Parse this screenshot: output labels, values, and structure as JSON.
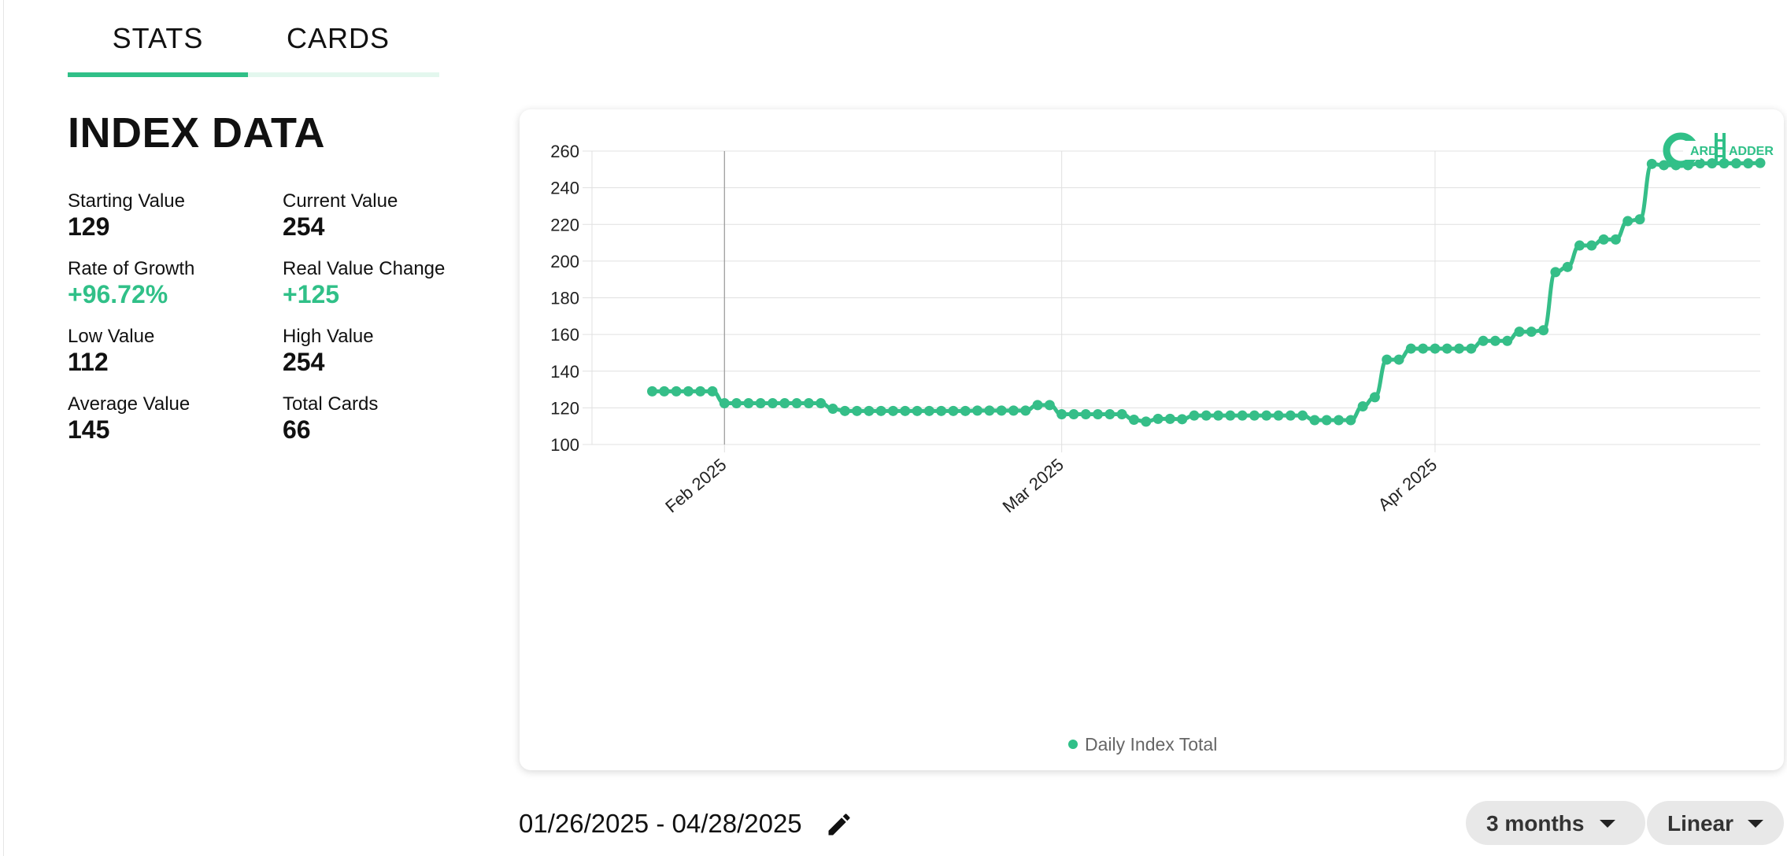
{
  "tabs": [
    {
      "label": "STATS",
      "active": true
    },
    {
      "label": "CARDS",
      "active": false
    }
  ],
  "stats": {
    "title": "INDEX DATA",
    "items": [
      {
        "label": "Starting Value",
        "value": "129"
      },
      {
        "label": "Current Value",
        "value": "254"
      },
      {
        "label": "Rate of Growth",
        "value": "+96.72%",
        "highlight": true
      },
      {
        "label": "Real Value Change",
        "value": "+125",
        "highlight": true
      },
      {
        "label": "Low Value",
        "value": "112"
      },
      {
        "label": "High Value",
        "value": "254"
      },
      {
        "label": "Average Value",
        "value": "145"
      },
      {
        "label": "Total Cards",
        "value": "66"
      }
    ]
  },
  "logo": {
    "text_c": "C",
    "text_ard": "ARD",
    "text_l": "L",
    "text_adder": "ADDER"
  },
  "colors": {
    "accent": "#30c088",
    "line": "#35be88",
    "grid": "#e0e0e0",
    "pill": "#e8e8e8"
  },
  "chart_data": {
    "type": "line",
    "series": [
      {
        "name": "Daily Index Total",
        "points": [
          [
            "2025-01-26",
            129
          ],
          [
            "2025-01-27",
            129
          ],
          [
            "2025-01-28",
            129
          ],
          [
            "2025-01-29",
            129
          ],
          [
            "2025-01-30",
            129
          ],
          [
            "2025-01-31",
            129
          ],
          [
            "2025-02-01",
            122.5
          ],
          [
            "2025-02-02",
            122.5
          ],
          [
            "2025-02-03",
            122.5
          ],
          [
            "2025-02-04",
            122.5
          ],
          [
            "2025-02-05",
            122.5
          ],
          [
            "2025-02-06",
            122.5
          ],
          [
            "2025-02-07",
            122.5
          ],
          [
            "2025-02-08",
            122.5
          ],
          [
            "2025-02-09",
            122.5
          ],
          [
            "2025-02-10",
            119.5
          ],
          [
            "2025-02-11",
            118.3
          ],
          [
            "2025-02-12",
            118.3
          ],
          [
            "2025-02-13",
            118.3
          ],
          [
            "2025-02-14",
            118.3
          ],
          [
            "2025-02-15",
            118.3
          ],
          [
            "2025-02-16",
            118.3
          ],
          [
            "2025-02-17",
            118.3
          ],
          [
            "2025-02-18",
            118.3
          ],
          [
            "2025-02-19",
            118.3
          ],
          [
            "2025-02-20",
            118.3
          ],
          [
            "2025-02-21",
            118.3
          ],
          [
            "2025-02-22",
            118.5
          ],
          [
            "2025-02-23",
            118.5
          ],
          [
            "2025-02-24",
            118.5
          ],
          [
            "2025-02-25",
            118.5
          ],
          [
            "2025-02-26",
            118.5
          ],
          [
            "2025-02-27",
            121.5
          ],
          [
            "2025-02-28",
            121.5
          ],
          [
            "2025-03-01",
            116.5
          ],
          [
            "2025-03-02",
            116.5
          ],
          [
            "2025-03-03",
            116.5
          ],
          [
            "2025-03-04",
            116.5
          ],
          [
            "2025-03-05",
            116.5
          ],
          [
            "2025-03-06",
            116.5
          ],
          [
            "2025-03-07",
            113.5
          ],
          [
            "2025-03-08",
            112.5
          ],
          [
            "2025-03-09",
            114
          ],
          [
            "2025-03-10",
            114
          ],
          [
            "2025-03-11",
            113.8
          ],
          [
            "2025-03-12",
            115.8
          ],
          [
            "2025-03-13",
            115.8
          ],
          [
            "2025-03-14",
            115.8
          ],
          [
            "2025-03-15",
            115.8
          ],
          [
            "2025-03-16",
            115.8
          ],
          [
            "2025-03-17",
            115.8
          ],
          [
            "2025-03-18",
            115.8
          ],
          [
            "2025-03-19",
            115.8
          ],
          [
            "2025-03-20",
            115.8
          ],
          [
            "2025-03-21",
            115.8
          ],
          [
            "2025-03-22",
            113.3
          ],
          [
            "2025-03-23",
            113.3
          ],
          [
            "2025-03-24",
            113.3
          ],
          [
            "2025-03-25",
            113.3
          ],
          [
            "2025-03-26",
            120.8
          ],
          [
            "2025-03-27",
            125.8
          ],
          [
            "2025-03-28",
            146.3
          ],
          [
            "2025-03-29",
            146.3
          ],
          [
            "2025-03-30",
            152.3
          ],
          [
            "2025-03-31",
            152.3
          ],
          [
            "2025-04-01",
            152.3
          ],
          [
            "2025-04-02",
            152.3
          ],
          [
            "2025-04-03",
            152.3
          ],
          [
            "2025-04-04",
            152.3
          ],
          [
            "2025-04-05",
            156.5
          ],
          [
            "2025-04-06",
            156.5
          ],
          [
            "2025-04-07",
            156.5
          ],
          [
            "2025-04-08",
            161.5
          ],
          [
            "2025-04-09",
            161.5
          ],
          [
            "2025-04-10",
            162.3
          ],
          [
            "2025-04-11",
            194
          ],
          [
            "2025-04-12",
            196.8
          ],
          [
            "2025-04-13",
            208.5
          ],
          [
            "2025-04-14",
            208.5
          ],
          [
            "2025-04-15",
            211.8
          ],
          [
            "2025-04-16",
            211.8
          ],
          [
            "2025-04-17",
            221.8
          ],
          [
            "2025-04-18",
            222.8
          ],
          [
            "2025-04-19",
            253
          ],
          [
            "2025-04-20",
            252.3
          ],
          [
            "2025-04-21",
            252.3
          ],
          [
            "2025-04-22",
            252.3
          ],
          [
            "2025-04-23",
            253.3
          ],
          [
            "2025-04-24",
            253.3
          ],
          [
            "2025-04-25",
            253.3
          ],
          [
            "2025-04-26",
            253.3
          ],
          [
            "2025-04-27",
            253.3
          ],
          [
            "2025-04-28",
            253.5
          ]
        ]
      }
    ],
    "xlim": [
      "2025-01-21",
      "2025-04-28"
    ],
    "ylim": [
      100,
      260
    ],
    "yticks": [
      100,
      120,
      140,
      160,
      180,
      200,
      220,
      240,
      260
    ],
    "xticks": [
      {
        "date": "2025-02-01",
        "label": "Feb 2025"
      },
      {
        "date": "2025-03-01",
        "label": "Mar 2025"
      },
      {
        "date": "2025-04-01",
        "label": "Apr 2025"
      }
    ],
    "legend": {
      "position": "bottom",
      "label": "Daily Index Total"
    },
    "grid": true
  },
  "controls": {
    "date_range": "01/26/2025 - 04/28/2025",
    "period": "3 months",
    "scale": "Linear"
  }
}
